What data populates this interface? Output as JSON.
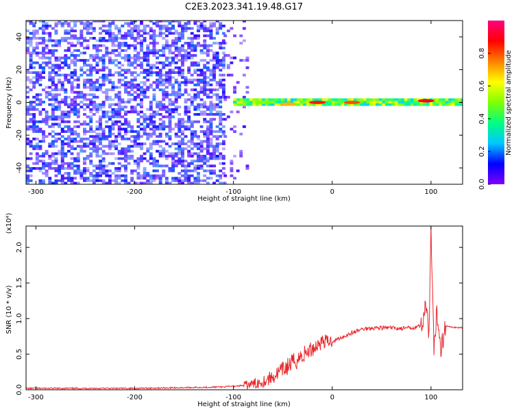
{
  "title": "C2E3.2023.341.19.48.G17",
  "colors": {
    "snr_line": "#e8262a",
    "colorbar": [
      "#7f00ff",
      "#0000ff",
      "#00c8ff",
      "#00ff80",
      "#80ff00",
      "#ffff00",
      "#ff8000",
      "#ff0000",
      "#ff0080"
    ]
  },
  "chart_data": [
    {
      "type": "heatmap",
      "xlabel": "Height of straight line (km)",
      "ylabel": "Frequency (Hz)",
      "xlim": [
        -310,
        132
      ],
      "ylim": [
        -50,
        50
      ],
      "xticks": [
        -300,
        -200,
        -100,
        0,
        100
      ],
      "xtick_labels": [
        "-300",
        "-200",
        "-100",
        "0",
        "100"
      ],
      "yticks": [
        -40,
        -20,
        0,
        20,
        40
      ],
      "ytick_labels": [
        "-40",
        "-20",
        "0",
        "20",
        "40"
      ],
      "colorbar": {
        "label": "Normalized spectral amplitude",
        "range": [
          0,
          1
        ],
        "ticks": [
          0.0,
          0.2,
          0.4,
          0.6,
          0.8
        ],
        "tick_labels": [
          "0.0",
          "0.2",
          "0.4",
          "0.6",
          "0.8"
        ]
      },
      "regions": [
        {
          "x": [
            -310,
            -110
          ],
          "freq": [
            -50,
            50
          ],
          "amplitude": 0.1
        },
        {
          "x": [
            -110,
            -85
          ],
          "freq": [
            -50,
            50
          ],
          "amplitude": 0.05
        },
        {
          "x": [
            -100,
            132
          ],
          "freq": [
            -2,
            2
          ],
          "amplitude": 0.45
        }
      ],
      "peaks": [
        {
          "x": -70,
          "freq": 0,
          "amplitude": 0.5
        },
        {
          "x": -45,
          "freq": -1,
          "amplitude": 0.7
        },
        {
          "x": -15,
          "freq": 0,
          "amplitude": 0.85
        },
        {
          "x": 20,
          "freq": 0,
          "amplitude": 0.8
        },
        {
          "x": 95,
          "freq": 1,
          "amplitude": 0.9
        }
      ]
    },
    {
      "type": "line",
      "xlabel": "Height of straight line (km)",
      "ylabel": "SNR (10 * v/v)",
      "yscale_label": "(x10⁴)",
      "xlim": [
        -310,
        132
      ],
      "ylim": [
        0,
        2.3
      ],
      "xticks": [
        -300,
        -200,
        -100,
        0,
        100
      ],
      "xtick_labels": [
        "-300",
        "-200",
        "-100",
        "0",
        "100"
      ],
      "yticks": [
        0.0,
        0.5,
        1.0,
        1.5,
        2.0
      ],
      "ytick_labels": [
        "0.0",
        "0.5",
        "1.0",
        "1.5",
        "2.0"
      ],
      "series": [
        {
          "x": [
            -310,
            -250,
            -200,
            -150,
            -110,
            -100,
            -90,
            -80,
            -70,
            -60,
            -50,
            -40,
            -30,
            -20,
            -10,
            0,
            10,
            20,
            30,
            40,
            50,
            60,
            70,
            80,
            90,
            95,
            98,
            100,
            103,
            106,
            110,
            115,
            120,
            132
          ],
          "values": [
            0.02,
            0.02,
            0.02,
            0.03,
            0.04,
            0.05,
            0.06,
            0.08,
            0.12,
            0.18,
            0.28,
            0.38,
            0.48,
            0.58,
            0.68,
            0.68,
            0.74,
            0.8,
            0.85,
            0.87,
            0.87,
            0.87,
            0.86,
            0.87,
            0.9,
            1.2,
            0.7,
            2.25,
            0.5,
            1.1,
            0.6,
            0.9,
            0.88,
            0.87
          ]
        }
      ]
    }
  ]
}
